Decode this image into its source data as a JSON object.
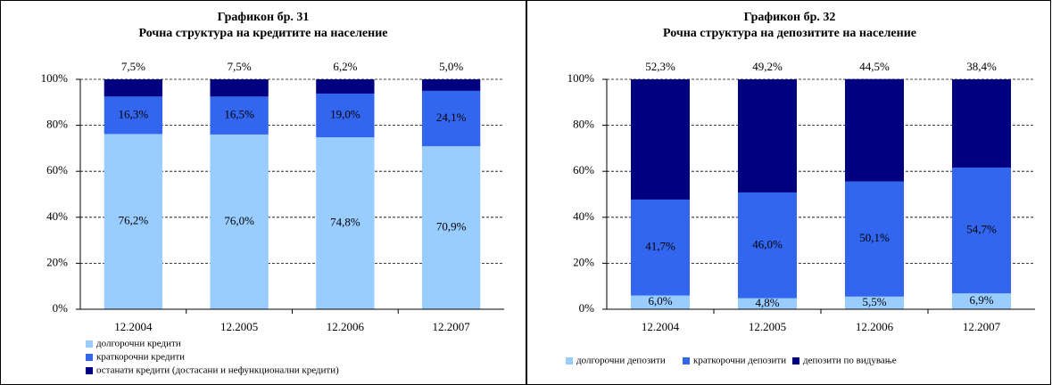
{
  "chart_data": [
    {
      "type": "bar",
      "stacked": true,
      "title": "Графикон бр. 31",
      "subtitle": "Рочна структура на кредитите на население",
      "categories": [
        "12.2004",
        "12.2005",
        "12.2006",
        "12.2007"
      ],
      "series": [
        {
          "name": "долгорочни кредити",
          "color": "#99ccff",
          "values": [
            76.2,
            76.0,
            74.8,
            70.9
          ],
          "value_labels": [
            "76,2%",
            "76,0%",
            "74,8%",
            "70,9%"
          ]
        },
        {
          "name": "краткорочни кредити",
          "color": "#3366ee",
          "values": [
            16.3,
            16.5,
            19.0,
            24.1
          ],
          "value_labels": [
            "16,3%",
            "16,5%",
            "19,0%",
            "24,1%"
          ]
        },
        {
          "name": "останати кредити (достасани и нефункционални кредити)",
          "color": "#000080",
          "values": [
            7.5,
            7.5,
            6.2,
            5.0
          ],
          "value_labels": [
            "7,5%",
            "7,5%",
            "6,2%",
            "5,0%"
          ]
        }
      ],
      "ylim": [
        0,
        100
      ],
      "yticks": [
        {
          "value": 0,
          "label": "0%"
        },
        {
          "value": 20,
          "label": "20%"
        },
        {
          "value": 40,
          "label": "40%"
        },
        {
          "value": 60,
          "label": "60%"
        },
        {
          "value": 80,
          "label": "80%"
        },
        {
          "value": 100,
          "label": "100%"
        }
      ],
      "grid": true,
      "legend": "bottom-left"
    },
    {
      "type": "bar",
      "stacked": true,
      "title": "Графикон бр. 32",
      "subtitle": "Рочна структура на депозитите на население",
      "categories": [
        "12.2004",
        "12.2005",
        "12.2006",
        "12.2007"
      ],
      "series": [
        {
          "name": "долгорочни депозити",
          "color": "#99ccff",
          "values": [
            6.0,
            4.8,
            5.5,
            6.9
          ],
          "value_labels": [
            "6,0%",
            "4,8%",
            "5,5%",
            "6,9%"
          ]
        },
        {
          "name": "краткорочни депозити",
          "color": "#3366ee",
          "values": [
            41.7,
            46.0,
            50.1,
            54.7
          ],
          "value_labels": [
            "41,7%",
            "46,0%",
            "50,1%",
            "54,7%"
          ]
        },
        {
          "name": "депозити по видување",
          "color": "#000080",
          "values": [
            52.3,
            49.2,
            44.5,
            38.4
          ],
          "value_labels": [
            "52,3%",
            "49,2%",
            "44,5%",
            "38,4%"
          ]
        }
      ],
      "ylim": [
        0,
        100
      ],
      "yticks": [
        {
          "value": 0,
          "label": "0%"
        },
        {
          "value": 20,
          "label": "20%"
        },
        {
          "value": 40,
          "label": "40%"
        },
        {
          "value": 60,
          "label": "60%"
        },
        {
          "value": 80,
          "label": "80%"
        },
        {
          "value": 100,
          "label": "100%"
        }
      ],
      "grid": true,
      "legend": "bottom"
    }
  ]
}
